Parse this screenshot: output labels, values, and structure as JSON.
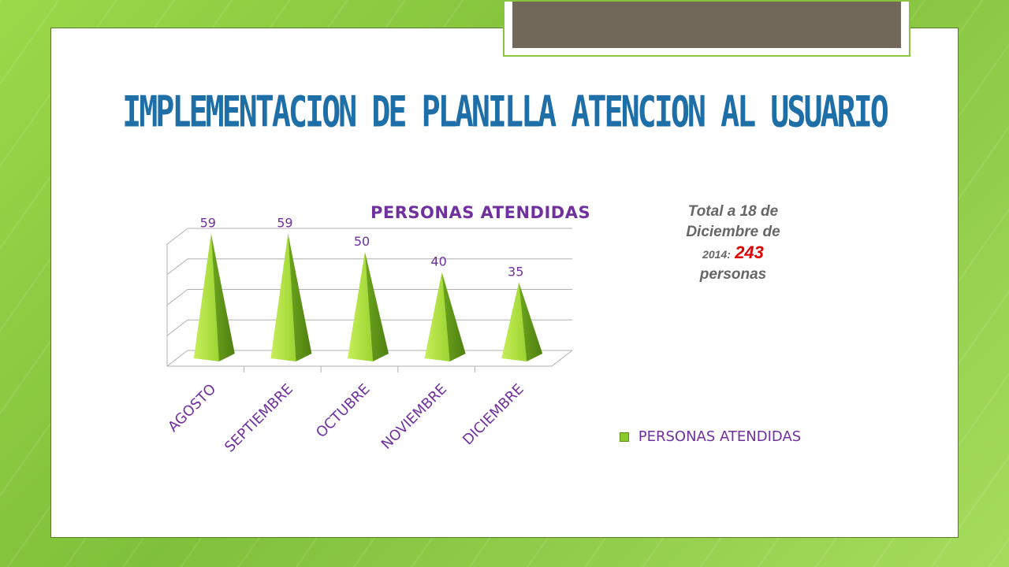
{
  "slide": {
    "title": "IMPLEMENTACION DE PLANILLA ATENCION AL USUARIO"
  },
  "note": {
    "line1": "Total a 18 de",
    "line2": "Diciembre de",
    "year": "2014:",
    "total": "243",
    "unit": "personas"
  },
  "chart_data": {
    "type": "bar",
    "title": "PERSONAS ATENDIDAS",
    "categories": [
      "AGOSTO",
      "SEPTIEMBRE",
      "OCTUBRE",
      "NOVIEMBRE",
      "DICIEMBRE"
    ],
    "series": [
      {
        "name": "PERSONAS ATENDIDAS",
        "values": [
          59,
          59,
          50,
          40,
          35
        ]
      }
    ],
    "ylim": [
      0,
      60
    ],
    "grid": true,
    "legend": "right",
    "colors": {
      "series": "#8ac92c",
      "labels": "#7030a0",
      "grid": "#b0b0b0"
    }
  }
}
